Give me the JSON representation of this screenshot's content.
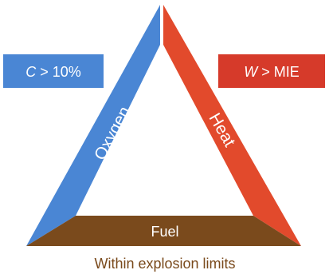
{
  "diagram": {
    "sides": {
      "oxygen": {
        "label": "Oxygen",
        "color": "#4a86d4"
      },
      "heat": {
        "label": "Heat",
        "color": "#e24a2c"
      },
      "fuel": {
        "label": "Fuel",
        "color": "#7a4a1c"
      }
    },
    "conditions": {
      "oxygen": {
        "variable": "C",
        "text": " > 10%",
        "color": "#4a86d4"
      },
      "heat": {
        "variable": "W",
        "text": " > MIE",
        "color": "#d63a2a"
      }
    },
    "caption": "Within explosion limits"
  }
}
